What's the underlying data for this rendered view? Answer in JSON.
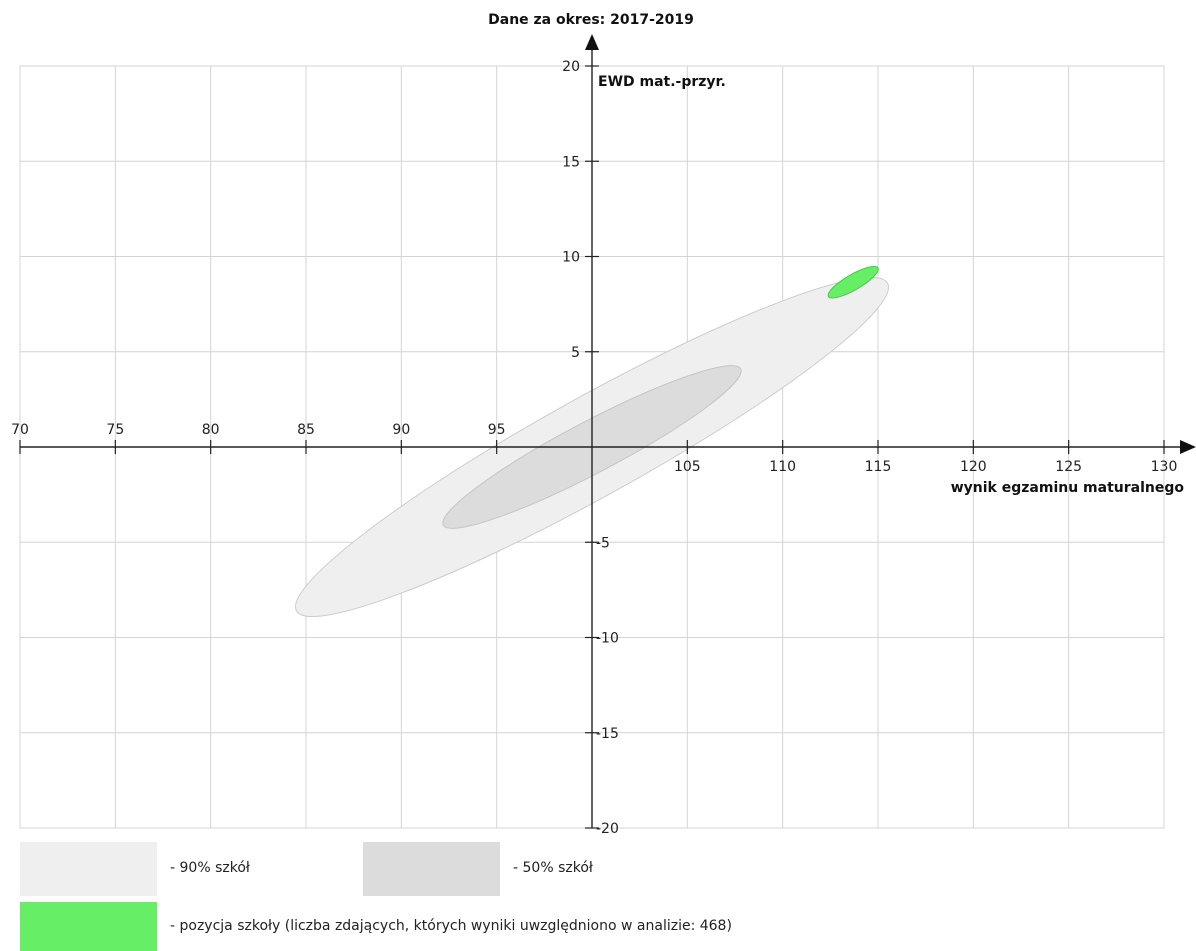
{
  "chart_data": {
    "type": "scatter",
    "title": "Dane za okres: 2017-2019",
    "xlabel": "wynik egzaminu maturalnego",
    "ylabel": "EWD mat.-przyr.",
    "xlim": [
      70,
      130
    ],
    "ylim": [
      -20,
      20
    ],
    "x_ticks": [
      70,
      75,
      80,
      85,
      90,
      95,
      105,
      110,
      115,
      120,
      125,
      130
    ],
    "y_ticks": [
      20,
      15,
      10,
      5,
      -5,
      -10,
      -15,
      -20
    ],
    "grid": true,
    "legend_position": "bottom",
    "series": [
      {
        "name": "- 90% szkół",
        "shape": "ellipse",
        "color": "#efefef",
        "stroke": "#cccccc",
        "center": [
          100,
          0
        ],
        "extreme_points": [
          [
            115.5,
            8.6
          ],
          [
            84.5,
            -8.6
          ]
        ],
        "half_width": 2.9
      },
      {
        "name": "- 50% szkół",
        "shape": "ellipse",
        "color": "#dcdcdc",
        "stroke": "#c4c4c4",
        "center": [
          100,
          0
        ],
        "extreme_points": [
          [
            107.8,
            4.1
          ],
          [
            92.2,
            -4.1
          ]
        ],
        "half_width": 1.5
      },
      {
        "name": "- pozycja szkoły (liczba zdających, których wyniki uwzględniono w analizie: 468)",
        "shape": "ellipse",
        "color": "#66ee66",
        "stroke": "#44cc44",
        "center": [
          113.7,
          8.7
        ],
        "extreme_points": [
          [
            115.0,
            9.4
          ],
          [
            112.4,
            7.9
          ]
        ],
        "half_width": 0.45
      }
    ]
  },
  "legend": {
    "items": [
      {
        "label": "- 90% szkół",
        "color": "#efefef"
      },
      {
        "label": "- 50% szkół",
        "color": "#dcdcdc"
      },
      {
        "label": "- pozycja szkoły (liczba zdających, których wyniki uwzględniono w analizie: 468)",
        "color": "#66ee66"
      }
    ]
  }
}
